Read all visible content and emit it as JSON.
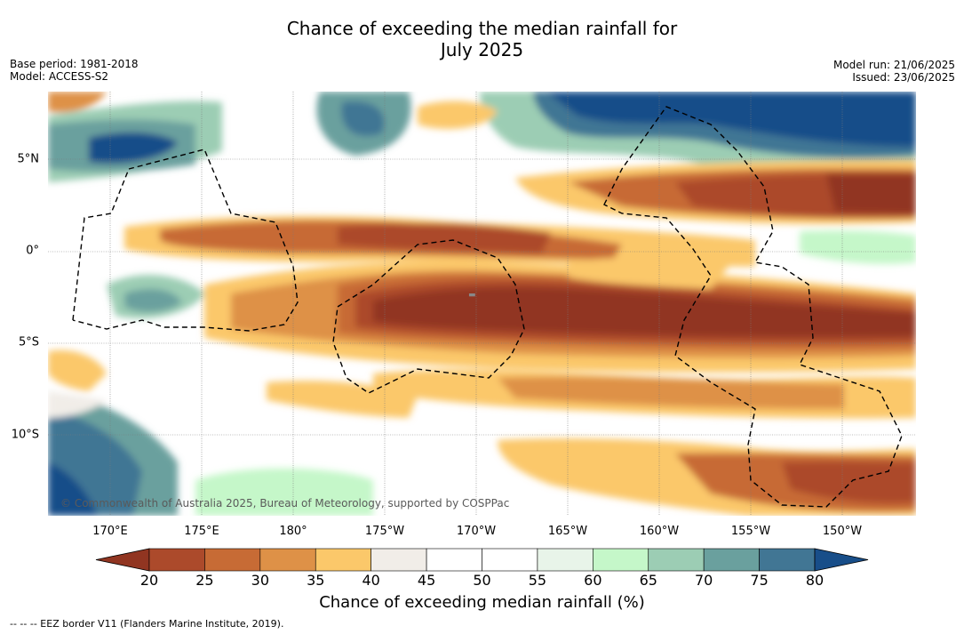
{
  "title_line1": "Chance of exceeding the median rainfall for",
  "title_line2": "July 2025",
  "base_period": "Base period: 1981-2018",
  "model": "Model: ACCESS-S2",
  "model_run": "Model run: 21/06/2025",
  "issued": "Issued: 23/06/2025",
  "lon_labels": [
    "170°E",
    "175°E",
    "180°",
    "175°W",
    "170°W",
    "165°W",
    "160°W",
    "155°W",
    "150°W"
  ],
  "lat_labels": [
    "5°N",
    "0°",
    "5°S",
    "10°S"
  ],
  "copyright": "© Commonwealth of Australia 2025, Bureau of Meteorology, supported by COSPPac",
  "colorbar": {
    "ticks": [
      "20",
      "25",
      "30",
      "35",
      "40",
      "45",
      "50",
      "55",
      "60",
      "65",
      "70",
      "75",
      "80"
    ],
    "title": "Chance of exceeding median rainfall (%)",
    "colors": [
      "#913521",
      "#ac4a2b",
      "#c76b35",
      "#de9147",
      "#fbc86a",
      "#f1ede8",
      "#ffffff",
      "#ffffff",
      "#e8f4e9",
      "#c5f7c9",
      "#9ccdb4",
      "#6aa09e",
      "#417694",
      "#184e89"
    ]
  },
  "footnote": "--  --  -- EEZ border V11 (Flanders Marine Institute, 2019)."
}
